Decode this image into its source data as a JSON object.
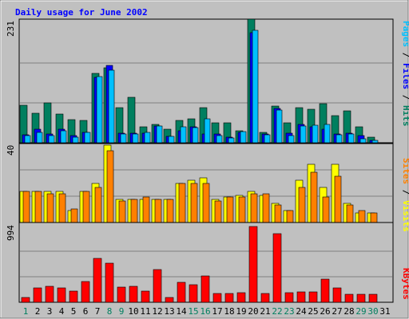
{
  "title": "Daily usage for June 2002",
  "colors": {
    "background": "#c0c0c0",
    "frame": "#c0c0c0",
    "panel": "#c0c0c0",
    "title": "#0000ff",
    "hits": "#007f5f",
    "files": "#0000ff",
    "pages": "#00c0ff",
    "visits": "#ffff00",
    "sites": "#ff8000",
    "kbytes": "#ff0000",
    "weekday_label": "#000000",
    "weekend_label": "#007f5f",
    "separator": "#000000"
  },
  "chart_data": [
    {
      "type": "bar",
      "panel": "hits-files-pages",
      "max_label": "231",
      "series": [
        {
          "name": "Hits",
          "values": [
            70,
            55,
            75,
            53,
            43,
            42,
            130,
            140,
            65,
            85,
            30,
            35,
            25,
            42,
            45,
            65,
            38,
            38,
            23,
            231,
            20,
            68,
            38,
            65,
            63,
            73,
            50,
            60,
            30,
            10
          ]
        },
        {
          "name": "Files",
          "values": [
            15,
            25,
            16,
            25,
            13,
            20,
            122,
            145,
            18,
            18,
            18,
            32,
            12,
            22,
            30,
            16,
            16,
            10,
            20,
            205,
            16,
            64,
            18,
            34,
            30,
            26,
            17,
            18,
            14,
            5
          ]
        },
        {
          "name": "Pages",
          "values": [
            14,
            20,
            14,
            22,
            11,
            20,
            124,
            136,
            17,
            16,
            20,
            31,
            12,
            30,
            28,
            44,
            14,
            9,
            21,
            210,
            15,
            61,
            13,
            31,
            33,
            34,
            15,
            16,
            8,
            5
          ]
        }
      ],
      "side_labels": [
        "Pages",
        "Files",
        "Hits"
      ]
    },
    {
      "type": "bar",
      "panel": "visits-sites",
      "max_label": "40",
      "series": [
        {
          "name": "Visits",
          "values": [
            16,
            16,
            16,
            16,
            6,
            16,
            20,
            40,
            12,
            12,
            12,
            12,
            12,
            20,
            22,
            23,
            12,
            13,
            14,
            16,
            14,
            10,
            6,
            22,
            30,
            18,
            30,
            10,
            5,
            5
          ]
        },
        {
          "name": "Sites",
          "values": [
            16,
            16,
            15,
            15,
            7,
            16,
            18,
            37,
            11,
            12,
            13,
            12,
            12,
            20,
            20,
            20,
            11,
            13,
            13,
            15,
            15,
            9,
            6,
            18,
            26,
            13,
            24,
            9,
            6,
            5
          ]
        }
      ],
      "side_labels": [
        "Sites",
        "Visits"
      ]
    },
    {
      "type": "bar",
      "panel": "kbytes",
      "max_label": "994",
      "series": [
        {
          "name": "KBytes",
          "values": [
            60,
            190,
            210,
            190,
            145,
            275,
            575,
            510,
            200,
            205,
            145,
            430,
            60,
            265,
            230,
            345,
            110,
            110,
            130,
            994,
            120,
            905,
            130,
            140,
            140,
            305,
            185,
            100,
            105,
            100
          ]
        }
      ],
      "side_labels": [
        "KBytes"
      ]
    }
  ],
  "days": [
    "1",
    "2",
    "3",
    "4",
    "5",
    "6",
    "7",
    "8",
    "9",
    "10",
    "11",
    "12",
    "13",
    "14",
    "15",
    "16",
    "17",
    "18",
    "19",
    "20",
    "21",
    "22",
    "23",
    "24",
    "25",
    "26",
    "27",
    "28",
    "29",
    "30",
    "31"
  ],
  "weekend_days": [
    1,
    8,
    9,
    15,
    16,
    22,
    23,
    29,
    30
  ]
}
